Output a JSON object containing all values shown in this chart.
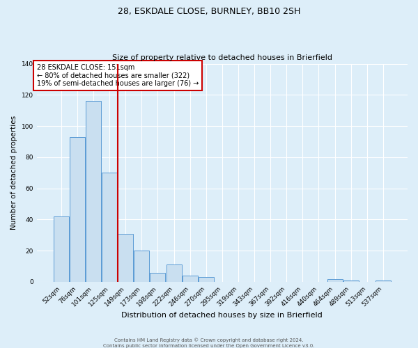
{
  "title": "28, ESKDALE CLOSE, BURNLEY, BB10 2SH",
  "subtitle": "Size of property relative to detached houses in Brierfield",
  "xlabel": "Distribution of detached houses by size in Brierfield",
  "ylabel": "Number of detached properties",
  "bin_labels": [
    "52sqm",
    "76sqm",
    "101sqm",
    "125sqm",
    "149sqm",
    "173sqm",
    "198sqm",
    "222sqm",
    "246sqm",
    "270sqm",
    "295sqm",
    "319sqm",
    "343sqm",
    "367sqm",
    "392sqm",
    "416sqm",
    "440sqm",
    "464sqm",
    "489sqm",
    "513sqm",
    "537sqm"
  ],
  "bar_values": [
    42,
    93,
    116,
    70,
    31,
    20,
    6,
    11,
    4,
    3,
    0,
    0,
    0,
    0,
    0,
    0,
    0,
    2,
    1,
    0,
    1
  ],
  "bar_color": "#c9dff0",
  "bar_edge_color": "#5b9bd5",
  "vline_x_idx": 4,
  "vline_color": "#cc0000",
  "annotation_text": "28 ESKDALE CLOSE: 151sqm\n← 80% of detached houses are smaller (322)\n19% of semi-detached houses are larger (76) →",
  "annotation_box_color": "#ffffff",
  "annotation_box_edge": "#cc0000",
  "ylim": [
    0,
    140
  ],
  "yticks": [
    0,
    20,
    40,
    60,
    80,
    100,
    120,
    140
  ],
  "footer1": "Contains HM Land Registry data © Crown copyright and database right 2024.",
  "footer2": "Contains public sector information licensed under the Open Government Licence v3.0.",
  "bg_color": "#ddeef9",
  "plot_bg_color": "#ddeef9",
  "grid_color": "#ffffff",
  "title_fontsize": 9,
  "subtitle_fontsize": 8
}
